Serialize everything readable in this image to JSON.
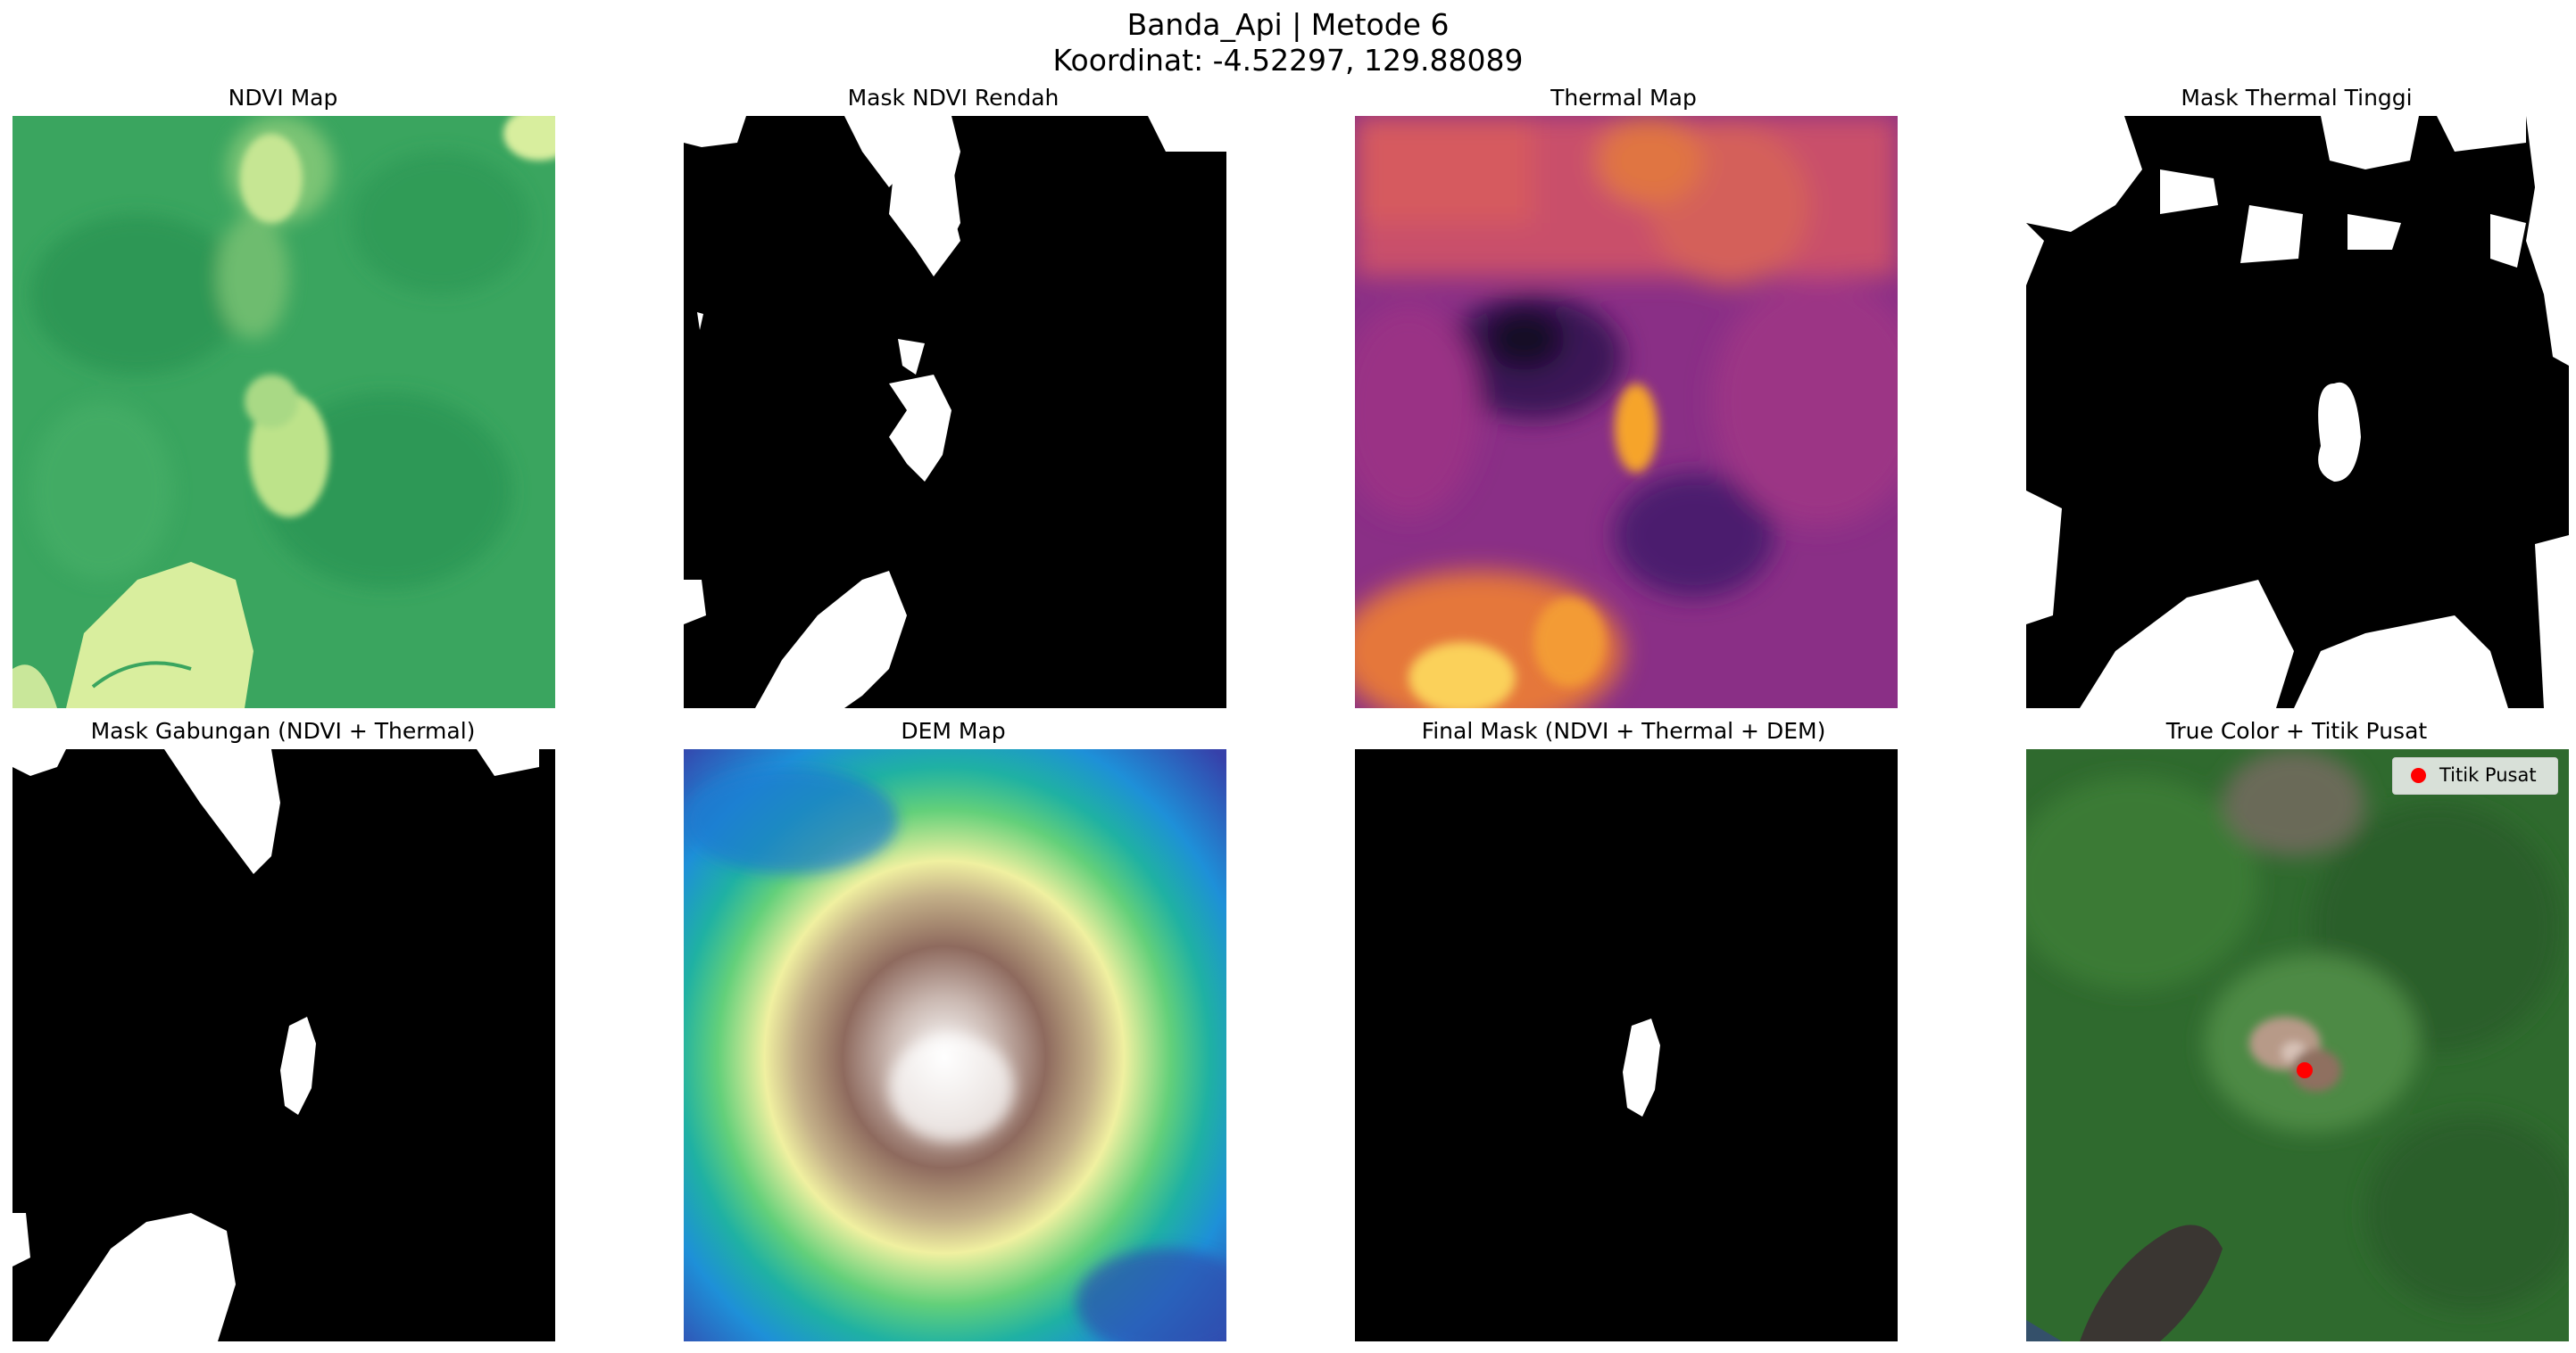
{
  "figure": {
    "title_line1": "Banda_Api | Metode 6",
    "title_line2": "Koordinat: -4.52297, 129.88089"
  },
  "panels": [
    {
      "title": "NDVI Map"
    },
    {
      "title": "Mask NDVI Rendah"
    },
    {
      "title": "Thermal Map"
    },
    {
      "title": "Mask Thermal Tinggi"
    },
    {
      "title": "Mask Gabungan (NDVI + Thermal)"
    },
    {
      "title": "DEM Map"
    },
    {
      "title": "Final Mask (NDVI + Thermal + DEM)"
    },
    {
      "title": "True Color + Titik Pusat"
    }
  ],
  "legend": {
    "label": "Titik Pusat",
    "marker_color": "#ff0000"
  },
  "colors": {
    "ndvi_high": "#2e9e58",
    "ndvi_low": "#e2f0a0",
    "thermal_hot": "#fcd15a",
    "thermal_cold": "#1a0a2e",
    "dem_peak": "#ffffff",
    "dem_low": "#2b3bb0"
  }
}
